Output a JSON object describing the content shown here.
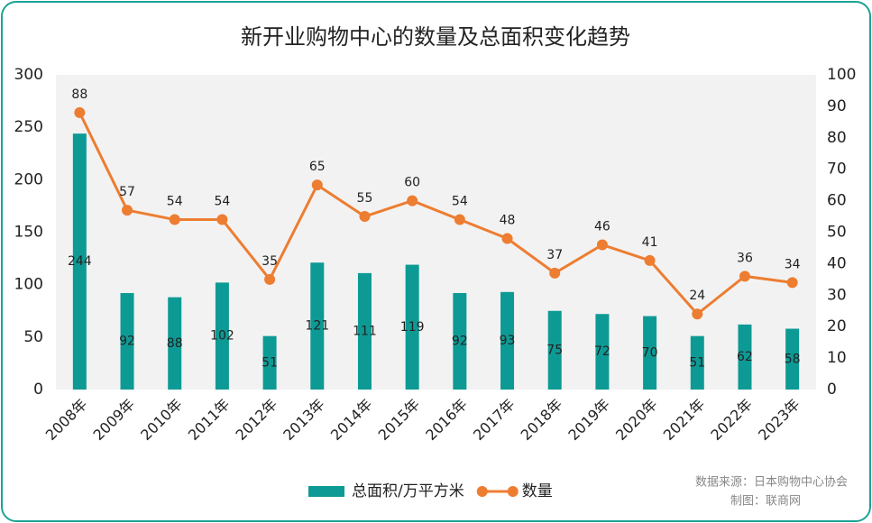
{
  "chart_data": {
    "type": "bar",
    "title": "新开业购物中心的数量及总面积变化趋势",
    "categories": [
      "2008年",
      "2009年",
      "2010年",
      "2011年",
      "2012年",
      "2013年",
      "2014年",
      "2015年",
      "2016年",
      "2017年",
      "2018年",
      "2019年",
      "2020年",
      "2021年",
      "2022年",
      "2023年"
    ],
    "series": [
      {
        "name": "总面积/万平方米",
        "type": "bar",
        "color": "#0e9a94",
        "values": [
          244,
          92,
          88,
          102,
          51,
          121,
          111,
          119,
          92,
          93,
          75,
          72,
          70,
          51,
          62,
          58
        ]
      },
      {
        "name": "数量",
        "type": "line",
        "axis": "y2",
        "color": "#ed7d31",
        "values": [
          88,
          57,
          54,
          54,
          35,
          65,
          55,
          60,
          54,
          48,
          37,
          46,
          41,
          24,
          36,
          34
        ]
      }
    ],
    "ylim": [
      0,
      300
    ],
    "yticks": [
      0,
      50,
      100,
      150,
      200,
      250,
      300
    ],
    "y2lim": [
      0,
      100
    ],
    "y2ticks": [
      0,
      10,
      20,
      30,
      40,
      50,
      60,
      70,
      80,
      90,
      100
    ],
    "legend": "bottom",
    "source": "数据来源：日本购物中心协会",
    "credit": "制图：联商网"
  }
}
